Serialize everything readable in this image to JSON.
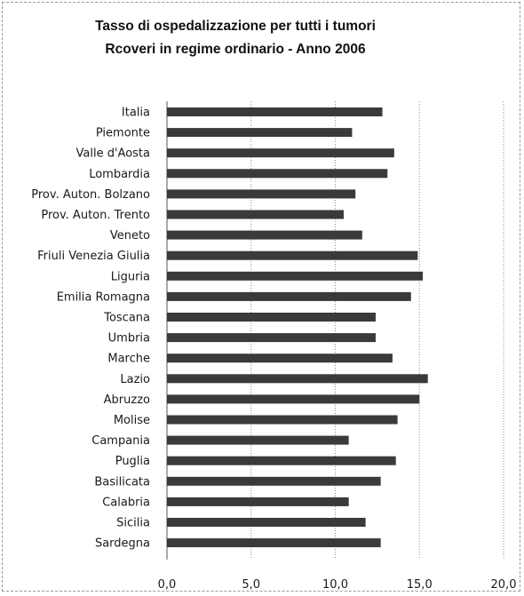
{
  "chart_data": {
    "type": "bar",
    "orientation": "horizontal",
    "title": "Tasso di ospedalizzazione per tutti i tumori",
    "subtitle": "Rcoveri in regime ordinario  - Anno 2006",
    "categories": [
      "Italia",
      "Piemonte",
      "Valle d'Aosta",
      "Lombardia",
      "Prov. Auton. Bolzano",
      "Prov. Auton. Trento",
      "Veneto",
      "Friuli Venezia Giulia",
      "Liguria",
      "Emilia Romagna",
      "Toscana",
      "Umbria",
      "Marche",
      "Lazio",
      "Abruzzo",
      "Molise",
      "Campania",
      "Puglia",
      "Basilicata",
      "Calabria",
      "Sicilia",
      "Sardegna"
    ],
    "values": [
      12.8,
      11.0,
      13.5,
      13.1,
      11.2,
      10.5,
      11.6,
      14.9,
      15.2,
      14.5,
      12.4,
      12.4,
      13.4,
      15.5,
      15.0,
      13.7,
      10.8,
      13.6,
      12.7,
      10.8,
      11.8,
      12.7
    ],
    "xlim": [
      0,
      20
    ],
    "x_ticks": [
      "0,0",
      "5,0",
      "10,0",
      "15,0",
      "20,0"
    ],
    "grid": "vertical dotted",
    "bar_color": "#3a3a3a"
  }
}
